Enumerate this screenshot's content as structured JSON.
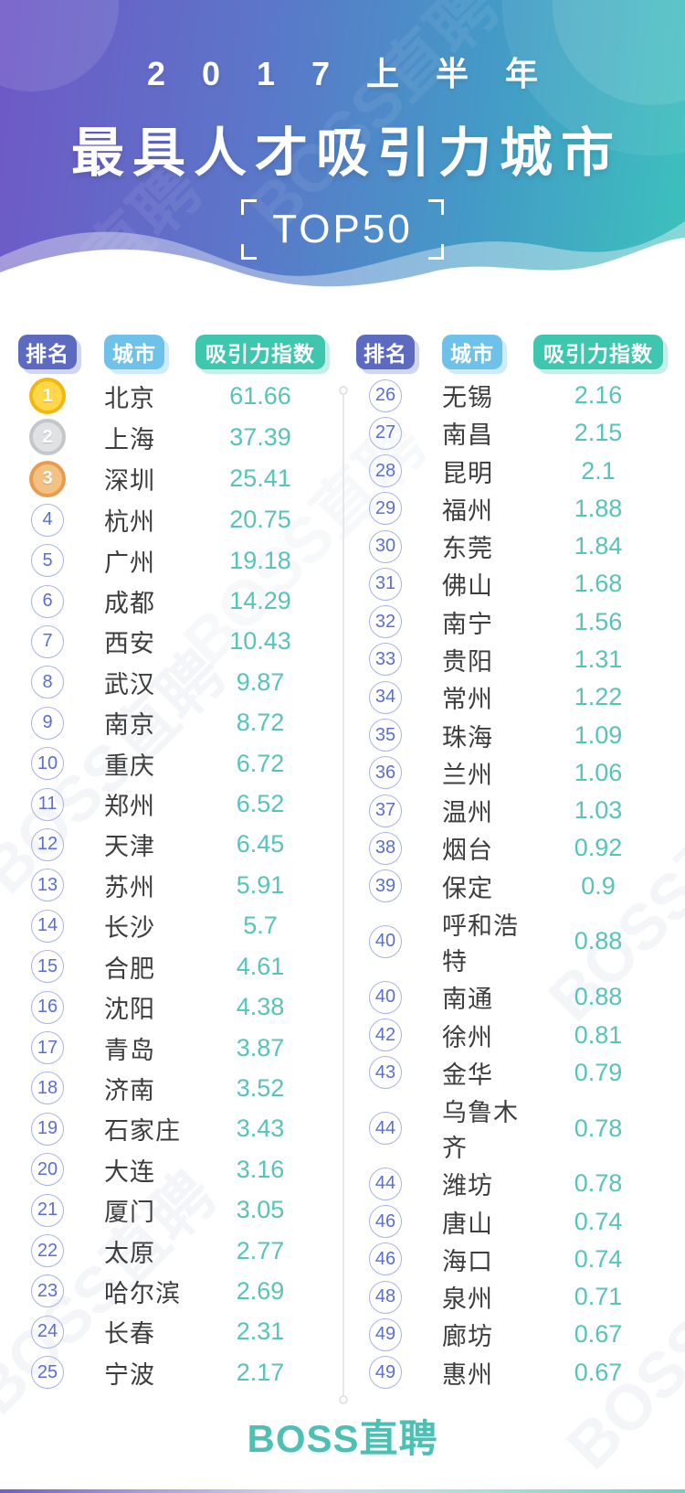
{
  "header": {
    "line1": "2017上半年",
    "line2": "最具人才吸引力城市",
    "badge": "TOP50"
  },
  "watermark": "BOSS直聘",
  "footer": {
    "logo": "BOSS直聘"
  },
  "colors": {
    "hero_gradient_left": "#6f58c6",
    "hero_gradient_right": "#3cc2bc",
    "rank_header_badge": "#5c6bc0",
    "city_header_badge": "#6ec2ea",
    "index_header_badge": "#3fc6ae",
    "value_text": "#58c3ba",
    "rank_number": "#5b6fd2",
    "gold_medal": "#f2b711",
    "silver_medal": "#c5c6ca",
    "bronze_medal": "#e89c50",
    "logo_teal": "#4dc0b4"
  },
  "table": {
    "headers": {
      "rank": "排名",
      "city": "城市",
      "index": "吸引力指数"
    },
    "left_rows": [
      {
        "rank": "1",
        "city": "北京",
        "value": "61.66",
        "medal": "gold"
      },
      {
        "rank": "2",
        "city": "上海",
        "value": "37.39",
        "medal": "silver"
      },
      {
        "rank": "3",
        "city": "深圳",
        "value": "25.41",
        "medal": "bronze"
      },
      {
        "rank": "4",
        "city": "杭州",
        "value": "20.75"
      },
      {
        "rank": "5",
        "city": "广州",
        "value": "19.18"
      },
      {
        "rank": "6",
        "city": "成都",
        "value": "14.29"
      },
      {
        "rank": "7",
        "city": "西安",
        "value": "10.43"
      },
      {
        "rank": "8",
        "city": "武汉",
        "value": "9.87"
      },
      {
        "rank": "9",
        "city": "南京",
        "value": "8.72"
      },
      {
        "rank": "10",
        "city": "重庆",
        "value": "6.72"
      },
      {
        "rank": "11",
        "city": "郑州",
        "value": "6.52"
      },
      {
        "rank": "12",
        "city": "天津",
        "value": "6.45"
      },
      {
        "rank": "13",
        "city": "苏州",
        "value": "5.91"
      },
      {
        "rank": "14",
        "city": "长沙",
        "value": "5.7"
      },
      {
        "rank": "15",
        "city": "合肥",
        "value": "4.61"
      },
      {
        "rank": "16",
        "city": "沈阳",
        "value": "4.38"
      },
      {
        "rank": "17",
        "city": "青岛",
        "value": "3.87"
      },
      {
        "rank": "18",
        "city": "济南",
        "value": "3.52"
      },
      {
        "rank": "19",
        "city": "石家庄",
        "value": "3.43"
      },
      {
        "rank": "20",
        "city": "大连",
        "value": "3.16"
      },
      {
        "rank": "21",
        "city": "厦门",
        "value": "3.05"
      },
      {
        "rank": "22",
        "city": "太原",
        "value": "2.77"
      },
      {
        "rank": "23",
        "city": "哈尔滨",
        "value": "2.69"
      },
      {
        "rank": "24",
        "city": "长春",
        "value": "2.31"
      },
      {
        "rank": "25",
        "city": "宁波",
        "value": "2.17"
      }
    ],
    "right_rows": [
      {
        "rank": "26",
        "city": "无锡",
        "value": "2.16"
      },
      {
        "rank": "27",
        "city": "南昌",
        "value": "2.15"
      },
      {
        "rank": "28",
        "city": "昆明",
        "value": "2.1"
      },
      {
        "rank": "29",
        "city": "福州",
        "value": "1.88"
      },
      {
        "rank": "30",
        "city": "东莞",
        "value": "1.84"
      },
      {
        "rank": "31",
        "city": "佛山",
        "value": "1.68"
      },
      {
        "rank": "32",
        "city": "南宁",
        "value": "1.56"
      },
      {
        "rank": "33",
        "city": "贵阳",
        "value": "1.31"
      },
      {
        "rank": "34",
        "city": "常州",
        "value": "1.22"
      },
      {
        "rank": "35",
        "city": "珠海",
        "value": "1.09"
      },
      {
        "rank": "36",
        "city": "兰州",
        "value": "1.06"
      },
      {
        "rank": "37",
        "city": "温州",
        "value": "1.03"
      },
      {
        "rank": "38",
        "city": "烟台",
        "value": "0.92"
      },
      {
        "rank": "39",
        "city": "保定",
        "value": "0.9"
      },
      {
        "rank": "40",
        "city": "呼和浩特",
        "value": "0.88"
      },
      {
        "rank": "40",
        "city": "南通",
        "value": "0.88"
      },
      {
        "rank": "42",
        "city": "徐州",
        "value": "0.81"
      },
      {
        "rank": "43",
        "city": "金华",
        "value": "0.79"
      },
      {
        "rank": "44",
        "city": "乌鲁木齐",
        "value": "0.78"
      },
      {
        "rank": "44",
        "city": "潍坊",
        "value": "0.78"
      },
      {
        "rank": "46",
        "city": "唐山",
        "value": "0.74"
      },
      {
        "rank": "46",
        "city": "海口",
        "value": "0.74"
      },
      {
        "rank": "48",
        "city": "泉州",
        "value": "0.71"
      },
      {
        "rank": "49",
        "city": "廊坊",
        "value": "0.67"
      },
      {
        "rank": "49",
        "city": "惠州",
        "value": "0.67"
      }
    ]
  },
  "chart_data": {
    "type": "table",
    "title": "2017上半年最具人才吸引力城市 TOP50",
    "columns": [
      "排名",
      "城市",
      "吸引力指数"
    ],
    "rows": [
      [
        1,
        "北京",
        61.66
      ],
      [
        2,
        "上海",
        37.39
      ],
      [
        3,
        "深圳",
        25.41
      ],
      [
        4,
        "杭州",
        20.75
      ],
      [
        5,
        "广州",
        19.18
      ],
      [
        6,
        "成都",
        14.29
      ],
      [
        7,
        "西安",
        10.43
      ],
      [
        8,
        "武汉",
        9.87
      ],
      [
        9,
        "南京",
        8.72
      ],
      [
        10,
        "重庆",
        6.72
      ],
      [
        11,
        "郑州",
        6.52
      ],
      [
        12,
        "天津",
        6.45
      ],
      [
        13,
        "苏州",
        5.91
      ],
      [
        14,
        "长沙",
        5.7
      ],
      [
        15,
        "合肥",
        4.61
      ],
      [
        16,
        "沈阳",
        4.38
      ],
      [
        17,
        "青岛",
        3.87
      ],
      [
        18,
        "济南",
        3.52
      ],
      [
        19,
        "石家庄",
        3.43
      ],
      [
        20,
        "大连",
        3.16
      ],
      [
        21,
        "厦门",
        3.05
      ],
      [
        22,
        "太原",
        2.77
      ],
      [
        23,
        "哈尔滨",
        2.69
      ],
      [
        24,
        "长春",
        2.31
      ],
      [
        25,
        "宁波",
        2.17
      ],
      [
        26,
        "无锡",
        2.16
      ],
      [
        27,
        "南昌",
        2.15
      ],
      [
        28,
        "昆明",
        2.1
      ],
      [
        29,
        "福州",
        1.88
      ],
      [
        30,
        "东莞",
        1.84
      ],
      [
        31,
        "佛山",
        1.68
      ],
      [
        32,
        "南宁",
        1.56
      ],
      [
        33,
        "贵阳",
        1.31
      ],
      [
        34,
        "常州",
        1.22
      ],
      [
        35,
        "珠海",
        1.09
      ],
      [
        36,
        "兰州",
        1.06
      ],
      [
        37,
        "温州",
        1.03
      ],
      [
        38,
        "烟台",
        0.92
      ],
      [
        39,
        "保定",
        0.9
      ],
      [
        40,
        "呼和浩特",
        0.88
      ],
      [
        40,
        "南通",
        0.88
      ],
      [
        42,
        "徐州",
        0.81
      ],
      [
        43,
        "金华",
        0.79
      ],
      [
        44,
        "乌鲁木齐",
        0.78
      ],
      [
        44,
        "潍坊",
        0.78
      ],
      [
        46,
        "唐山",
        0.74
      ],
      [
        46,
        "海口",
        0.74
      ],
      [
        48,
        "泉州",
        0.71
      ],
      [
        49,
        "廊坊",
        0.67
      ],
      [
        49,
        "惠州",
        0.67
      ]
    ]
  }
}
